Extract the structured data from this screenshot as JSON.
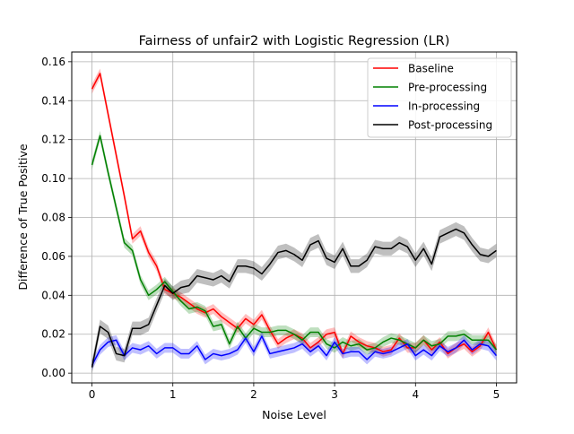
{
  "chart_data": {
    "type": "line",
    "title": "Fairness of unfair2 with Logistic Regression (LR)",
    "xlabel": "Noise Level",
    "ylabel": "Difference of True Positive",
    "xlim": [
      -0.25,
      5.25
    ],
    "ylim": [
      -0.005,
      0.165
    ],
    "xticks": [
      0,
      1,
      2,
      3,
      4,
      5
    ],
    "xtick_labels": [
      "0",
      "1",
      "2",
      "3",
      "4",
      "5"
    ],
    "yticks": [
      0.0,
      0.02,
      0.04,
      0.06,
      0.08,
      0.1,
      0.12,
      0.14,
      0.16
    ],
    "ytick_labels": [
      "0.00",
      "0.02",
      "0.04",
      "0.06",
      "0.08",
      "0.10",
      "0.12",
      "0.14",
      "0.16"
    ],
    "grid": true,
    "legend_position": "top-right",
    "x": [
      0,
      0.1,
      0.2,
      0.3,
      0.4,
      0.5,
      0.6,
      0.7,
      0.8,
      0.9,
      1.0,
      1.1,
      1.2,
      1.3,
      1.4,
      1.5,
      1.6,
      1.7,
      1.8,
      1.9,
      2.0,
      2.1,
      2.2,
      2.3,
      2.4,
      2.5,
      2.6,
      2.7,
      2.8,
      2.9,
      3.0,
      3.1,
      3.2,
      3.3,
      3.4,
      3.5,
      3.6,
      3.7,
      3.8,
      3.9,
      4.0,
      4.1,
      4.2,
      4.3,
      4.4,
      4.5,
      4.6,
      4.7,
      4.8,
      4.9,
      5.0
    ],
    "series": [
      {
        "name": "Baseline",
        "color": "#ff0000",
        "values": [
          0.146,
          0.154,
          0.133,
          0.112,
          0.091,
          0.069,
          0.073,
          0.062,
          0.055,
          0.043,
          0.041,
          0.039,
          0.036,
          0.033,
          0.031,
          0.033,
          0.029,
          0.026,
          0.023,
          0.028,
          0.025,
          0.03,
          0.022,
          0.015,
          0.018,
          0.02,
          0.018,
          0.013,
          0.016,
          0.02,
          0.021,
          0.01,
          0.019,
          0.016,
          0.014,
          0.013,
          0.011,
          0.012,
          0.018,
          0.013,
          0.013,
          0.017,
          0.012,
          0.016,
          0.01,
          0.013,
          0.015,
          0.011,
          0.014,
          0.021,
          0.012
        ],
        "band": 0.0025
      },
      {
        "name": "Pre-processing",
        "color": "#008000",
        "values": [
          0.107,
          0.122,
          0.103,
          0.085,
          0.067,
          0.063,
          0.048,
          0.04,
          0.043,
          0.047,
          0.042,
          0.037,
          0.033,
          0.034,
          0.032,
          0.024,
          0.025,
          0.015,
          0.024,
          0.018,
          0.023,
          0.021,
          0.021,
          0.022,
          0.022,
          0.02,
          0.017,
          0.021,
          0.021,
          0.015,
          0.013,
          0.016,
          0.014,
          0.015,
          0.012,
          0.013,
          0.016,
          0.018,
          0.017,
          0.015,
          0.013,
          0.017,
          0.014,
          0.015,
          0.019,
          0.019,
          0.02,
          0.017,
          0.017,
          0.017,
          0.012
        ],
        "band": 0.0025
      },
      {
        "name": "In-processing",
        "color": "#0000ff",
        "values": [
          0.004,
          0.012,
          0.016,
          0.017,
          0.009,
          0.013,
          0.012,
          0.014,
          0.01,
          0.013,
          0.013,
          0.01,
          0.01,
          0.014,
          0.007,
          0.01,
          0.009,
          0.01,
          0.012,
          0.018,
          0.011,
          0.019,
          0.01,
          0.011,
          0.012,
          0.013,
          0.015,
          0.011,
          0.014,
          0.009,
          0.016,
          0.01,
          0.011,
          0.011,
          0.007,
          0.011,
          0.01,
          0.011,
          0.013,
          0.015,
          0.009,
          0.012,
          0.009,
          0.014,
          0.011,
          0.013,
          0.017,
          0.012,
          0.015,
          0.014,
          0.009
        ],
        "band": 0.0025
      },
      {
        "name": "Post-processing",
        "color": "#000000",
        "values": [
          0.003,
          0.024,
          0.021,
          0.01,
          0.009,
          0.023,
          0.023,
          0.025,
          0.035,
          0.045,
          0.041,
          0.044,
          0.045,
          0.05,
          0.049,
          0.048,
          0.05,
          0.047,
          0.055,
          0.055,
          0.054,
          0.051,
          0.056,
          0.062,
          0.063,
          0.061,
          0.058,
          0.066,
          0.068,
          0.059,
          0.057,
          0.064,
          0.055,
          0.055,
          0.058,
          0.065,
          0.064,
          0.064,
          0.067,
          0.065,
          0.058,
          0.064,
          0.056,
          0.07,
          0.072,
          0.074,
          0.072,
          0.066,
          0.061,
          0.06,
          0.063
        ],
        "band": 0.0035
      }
    ]
  }
}
